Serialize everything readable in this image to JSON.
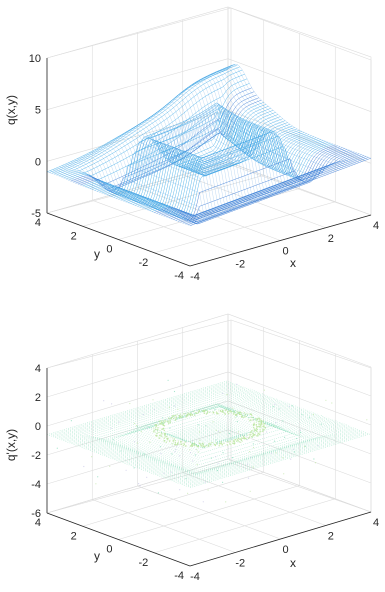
{
  "chart_data": [
    {
      "type": "surface-3d-mesh",
      "title": "",
      "xlabel": "x",
      "ylabel": "y",
      "zlabel": "q(x,y)",
      "xlim": [
        -4,
        4
      ],
      "ylim": [
        -4,
        4
      ],
      "zlim": [
        -5,
        10
      ],
      "x_ticks": [
        "-4",
        "-2",
        "0",
        "2",
        "4"
      ],
      "y_ticks": [
        "-4",
        "-2",
        "0",
        "2",
        "4"
      ],
      "z_ticks": [
        "-5",
        "0",
        "5",
        "10"
      ],
      "grid": true,
      "colormap": [
        "#1a2a9a",
        "#2f6fd0",
        "#39a9e6",
        "#54d0c0"
      ],
      "surface_description_values": {
        "z_min": -5,
        "z_max": 7
      }
    },
    {
      "type": "scatter-3d",
      "title": "",
      "xlabel": "x",
      "ylabel": "y",
      "zlabel": "q'(x,y)",
      "xlim": [
        -4,
        4
      ],
      "ylim": [
        -4,
        4
      ],
      "zlim": [
        -6,
        4
      ],
      "x_ticks": [
        "-4",
        "-2",
        "0",
        "2",
        "4"
      ],
      "y_ticks": [
        "-4",
        "-2",
        "0",
        "2",
        "4"
      ],
      "z_ticks": [
        "-6",
        "-4",
        "-2",
        "0",
        "2",
        "4"
      ],
      "grid": true,
      "colors": [
        "#7fd9b5",
        "#bfe7a4",
        "#c8c4e6"
      ],
      "surface_description_values": {
        "z_min": -1,
        "z_max": 0.5
      }
    }
  ]
}
